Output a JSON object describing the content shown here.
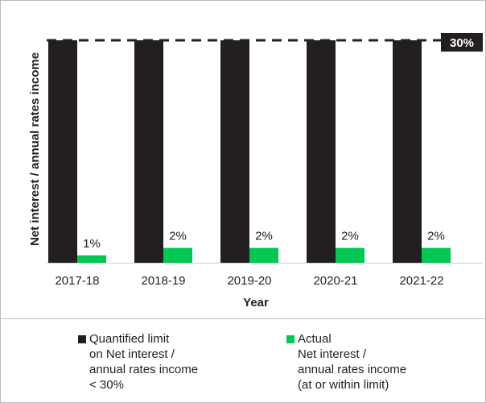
{
  "chart_data": {
    "type": "bar",
    "categories": [
      "2017-18",
      "2018-19",
      "2019-20",
      "2020-21",
      "2021-22"
    ],
    "series": [
      {
        "name": "Quantified limit\non Net interest /\nannual rates income\n < 30%",
        "values": [
          30,
          30,
          30,
          30,
          30
        ]
      },
      {
        "name": "Actual\nNet interest /\nannual rates income\n(at or within limit)",
        "values": [
          1,
          2,
          2,
          2,
          2
        ]
      }
    ],
    "data_labels": [
      "1%",
      "2%",
      "2%",
      "2%",
      "2%"
    ],
    "limit_label": "30%",
    "xlabel": "Year",
    "ylabel": "Net interest / annual rates income",
    "ylim": [
      0,
      30
    ],
    "grid": false,
    "legend_position": "bottom",
    "colors": {
      "limit": "#231f20",
      "actual": "#00c853",
      "limit_line": "#222222",
      "badge_text": "#ffffff"
    }
  }
}
